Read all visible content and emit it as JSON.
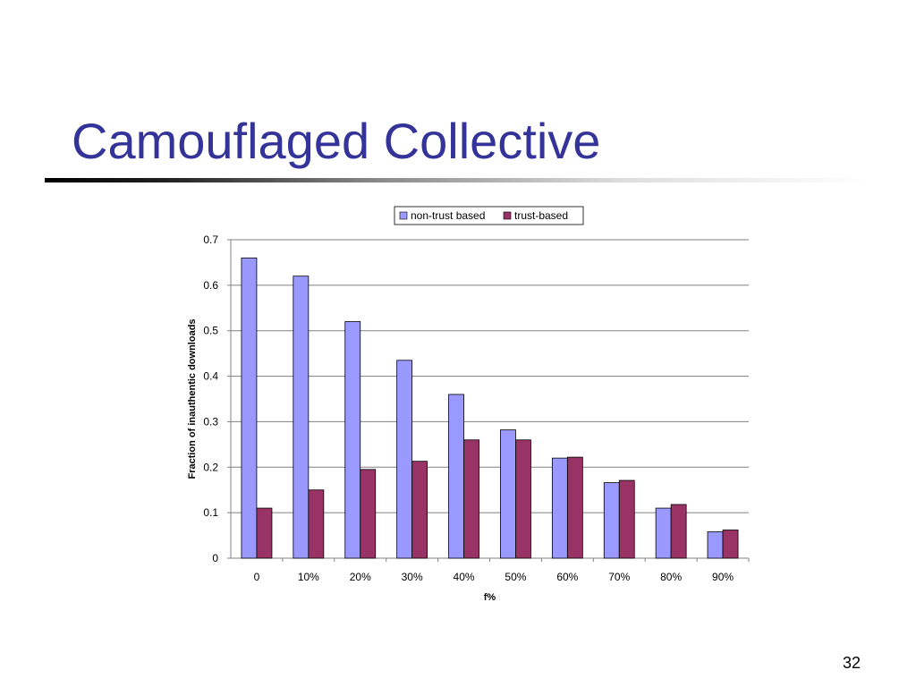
{
  "slide": {
    "title": "Camouflaged Collective",
    "page_number": "32"
  },
  "colors": {
    "title": "#333399",
    "series": [
      "#9999FF",
      "#993366"
    ]
  },
  "chart_data": {
    "type": "bar",
    "title": "",
    "xlabel": "f%",
    "ylabel": "Fraction of inauthentic downloads",
    "categories": [
      "0",
      "10%",
      "20%",
      "30%",
      "40%",
      "50%",
      "60%",
      "70%",
      "80%",
      "90%"
    ],
    "series": [
      {
        "name": "non-trust based",
        "values": [
          0.66,
          0.62,
          0.52,
          0.435,
          0.36,
          0.282,
          0.22,
          0.166,
          0.11,
          0.058
        ]
      },
      {
        "name": "trust-based",
        "values": [
          0.11,
          0.15,
          0.195,
          0.213,
          0.26,
          0.26,
          0.222,
          0.171,
          0.118,
          0.062
        ]
      }
    ],
    "ylim": [
      0,
      0.7
    ],
    "yticks": [
      "0",
      "0.1",
      "0.2",
      "0.3",
      "0.4",
      "0.5",
      "0.6",
      "0.7"
    ],
    "grid": true,
    "legend": "top-center"
  }
}
